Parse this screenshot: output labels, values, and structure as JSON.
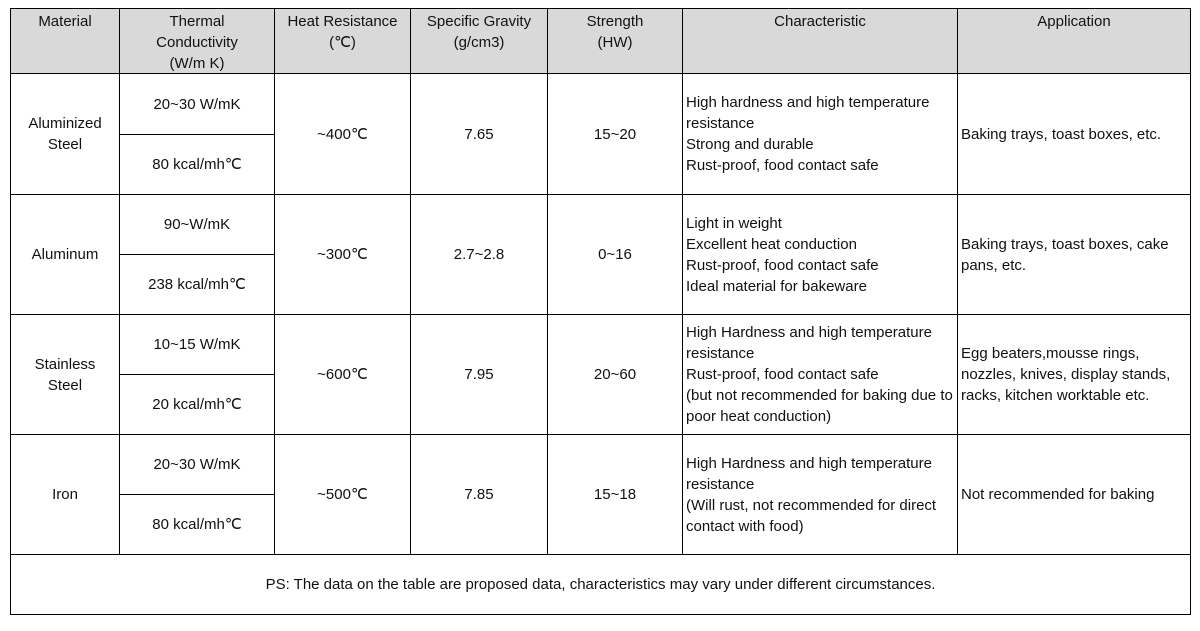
{
  "table": {
    "header": [
      [
        "Material"
      ],
      [
        "Thermal",
        "Conductivity",
        "(W/m K)"
      ],
      [
        "Heat  Resistance",
        "(℃)"
      ],
      [
        "Specific Gravity",
        "(g/cm3)"
      ],
      [
        "Strength",
        "(HW)"
      ],
      [
        "Characteristic"
      ],
      [
        "Application"
      ]
    ],
    "rows": [
      {
        "material": [
          "Aluminized",
          "Steel"
        ],
        "conductivity": [
          "20~30 W/mK",
          "80 kcal/mh℃"
        ],
        "heat": "~400℃",
        "gravity": "7.65",
        "strength": "15~20",
        "characteristic": [
          "High hardness and high temperature resistance",
          "Strong and durable",
          "Rust-proof, food contact safe"
        ],
        "application": "Baking trays, toast boxes, etc."
      },
      {
        "material": [
          "Aluminum"
        ],
        "conductivity": [
          "90~W/mK",
          "238 kcal/mh℃"
        ],
        "heat": "~300℃",
        "gravity": "2.7~2.8",
        "strength": "0~16",
        "characteristic": [
          "Light in weight",
          "Excellent heat conduction",
          "Rust-proof, food contact safe",
          "Ideal material for bakeware"
        ],
        "application": "Baking trays, toast boxes, cake pans, etc."
      },
      {
        "material": [
          "Stainless",
          "Steel"
        ],
        "conductivity": [
          "10~15 W/mK",
          "20 kcal/mh℃"
        ],
        "heat": "~600℃",
        "gravity": "7.95",
        "strength": "20~60",
        "characteristic": [
          "High Hardness and high temperature resistance",
          "Rust-proof, food contact safe",
          "(but not recommended for baking due to poor heat conduction)"
        ],
        "application": "Egg beaters,mousse rings, nozzles, knives, display stands, racks, kitchen worktable etc."
      },
      {
        "material": [
          "Iron"
        ],
        "conductivity": [
          "20~30 W/mK",
          "80 kcal/mh℃"
        ],
        "heat": "~500℃",
        "gravity": "7.85",
        "strength": "15~18",
        "characteristic": [
          "High Hardness and high temperature resistance",
          "(Will rust, not recommended for direct contact with food)"
        ],
        "application": "Not recommended for baking"
      }
    ],
    "note": "PS: The data on the table are proposed data, characteristics may vary under different circumstances."
  }
}
